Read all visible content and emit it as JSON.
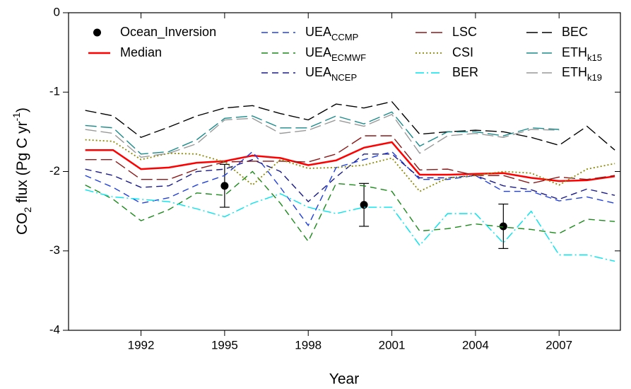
{
  "chart_data": {
    "type": "line",
    "xlabel": "Year",
    "ylabel": [
      "CO",
      "2",
      " flux (Pg C yr",
      "-1",
      ")"
    ],
    "xlim": [
      1989.4,
      2009.2
    ],
    "xticks": [
      1992,
      1995,
      1998,
      2001,
      2004,
      2007
    ],
    "ylim": [
      -4,
      0
    ],
    "yticks": [
      0,
      -1,
      -2,
      -3,
      -4
    ],
    "x": [
      1990,
      1991,
      1992,
      1993,
      1994,
      1995,
      1996,
      1997,
      1998,
      1999,
      2000,
      2001,
      2002,
      2003,
      2004,
      2005,
      2006,
      2007,
      2008,
      2009
    ],
    "series": [
      {
        "name": "Ocean_Inversion",
        "type": "errorbar",
        "color": "#000000",
        "x": [
          1995,
          2000,
          2005
        ],
        "values": [
          -2.18,
          -2.42,
          -2.69
        ],
        "errors": [
          0.27,
          0.27,
          0.28
        ]
      },
      {
        "name": "Median",
        "color": "#ff0000",
        "dash": "none",
        "width": 2.5,
        "values": [
          -1.73,
          -1.73,
          -1.97,
          -1.95,
          -1.89,
          -1.87,
          -1.8,
          -1.83,
          -1.92,
          -1.86,
          -1.7,
          -1.63,
          -2.04,
          -2.04,
          -2.03,
          -2.02,
          -2.08,
          -2.12,
          -2.11,
          -2.06
        ]
      },
      {
        "name": "UEA",
        "subscript": "CCMP",
        "color": "#2040e0",
        "dash": "9,6",
        "width": 1.4,
        "values": [
          -2.05,
          -2.2,
          -2.4,
          -2.33,
          -2.17,
          -2.05,
          -1.75,
          -2.2,
          -2.68,
          -1.95,
          -1.85,
          -1.75,
          -2.1,
          -2.1,
          -2.05,
          -2.25,
          -2.25,
          -2.37,
          -2.32,
          -2.4
        ]
      },
      {
        "name": "UEA",
        "subscript": "ECMWF",
        "color": "#1a8a1a",
        "dash": "9,6",
        "width": 1.4,
        "values": [
          -2.17,
          -2.35,
          -2.62,
          -2.48,
          -2.27,
          -2.3,
          -2.0,
          -2.4,
          -2.88,
          -2.15,
          -2.18,
          -2.25,
          -2.75,
          -2.72,
          -2.66,
          -2.7,
          -2.73,
          -2.78,
          -2.6,
          -2.63
        ]
      },
      {
        "name": "UEA",
        "subscript": "NCEP",
        "color": "#1a1a8a",
        "dash": "9,6",
        "width": 1.4,
        "values": [
          -1.97,
          -2.05,
          -2.2,
          -2.18,
          -2.0,
          -1.97,
          -1.85,
          -2.0,
          -2.38,
          -2.07,
          -1.78,
          -1.78,
          -2.08,
          -2.08,
          -2.05,
          -2.18,
          -2.23,
          -2.35,
          -2.22,
          -2.3
        ]
      },
      {
        "name": "LSC",
        "color": "#8b1a1a",
        "dash": "16,6",
        "width": 1.4,
        "values": [
          -1.85,
          -1.85,
          -2.1,
          -2.1,
          -1.97,
          -1.88,
          -1.87,
          -1.87,
          -1.88,
          -1.78,
          -1.55,
          -1.55,
          -1.98,
          -1.97,
          -2.05,
          -2.05,
          -2.15,
          -2.07,
          -2.1,
          -2.05
        ]
      },
      {
        "name": "CSI",
        "color": "#8b8b00",
        "dash": "2,3",
        "width": 1.8,
        "values": [
          -1.6,
          -1.62,
          -1.85,
          -1.77,
          -1.78,
          -1.88,
          -2.17,
          -1.85,
          -1.96,
          -1.95,
          -1.92,
          -1.83,
          -2.25,
          -2.08,
          -2.05,
          -2.0,
          -2.02,
          -2.17,
          -1.97,
          -1.9
        ]
      },
      {
        "name": "BER",
        "color": "#00e5ee",
        "dash": "12,4,2,4",
        "width": 1.4,
        "values": [
          -2.23,
          -2.32,
          -2.35,
          -2.38,
          -2.47,
          -2.57,
          -2.4,
          -2.28,
          -2.45,
          -2.53,
          -2.45,
          -2.45,
          -2.93,
          -2.53,
          -2.53,
          -2.9,
          -2.5,
          -3.05,
          -3.05,
          -3.13
        ]
      },
      {
        "name": "BEC",
        "color": "#000000",
        "dash": "16,6",
        "width": 1.4,
        "values": [
          -1.23,
          -1.3,
          -1.57,
          -1.44,
          -1.3,
          -1.2,
          -1.17,
          -1.27,
          -1.35,
          -1.15,
          -1.2,
          -1.12,
          -1.53,
          -1.5,
          -1.48,
          -1.5,
          -1.57,
          -1.67,
          -1.43,
          -1.73
        ]
      },
      {
        "name": "ETH",
        "subscript": "k15",
        "color": "#1a8b8b",
        "dash": "16,6",
        "width": 1.4,
        "values": [
          -1.42,
          -1.45,
          -1.78,
          -1.75,
          -1.6,
          -1.33,
          -1.3,
          -1.45,
          -1.45,
          -1.3,
          -1.4,
          -1.25,
          -1.68,
          -1.5,
          -1.5,
          -1.55,
          -1.45,
          -1.47,
          null,
          null
        ]
      },
      {
        "name": "ETH",
        "subscript": "k19",
        "color": "#999999",
        "dash": "16,6",
        "width": 1.4,
        "values": [
          -1.47,
          -1.52,
          -1.82,
          -1.77,
          -1.65,
          -1.35,
          -1.33,
          -1.52,
          -1.48,
          -1.35,
          -1.43,
          -1.28,
          -1.77,
          -1.55,
          -1.52,
          -1.57,
          -1.47,
          -1.48,
          null,
          null
        ]
      }
    ]
  }
}
